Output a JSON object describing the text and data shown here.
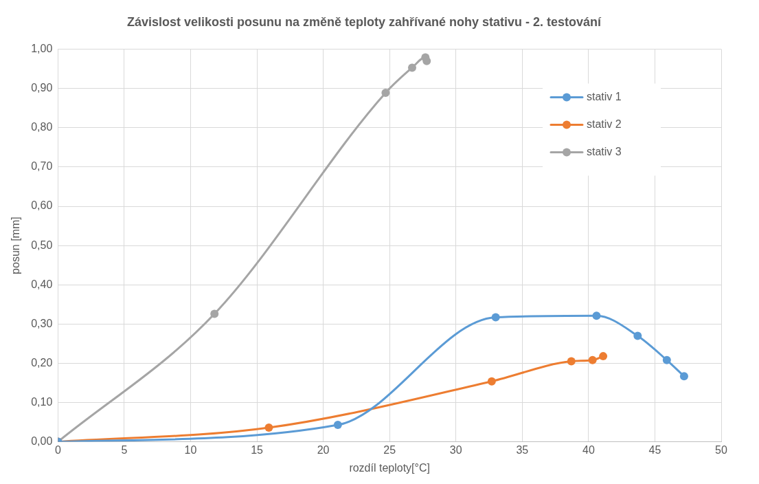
{
  "chart_data": {
    "type": "line",
    "title": "Závislost velikosti posunu na změně teploty zahřívané nohy stativu - 2. testování",
    "xlabel": "rozdíl teploty[°C]",
    "ylabel": "posun [mm]",
    "series": [
      {
        "name": "stativ 1",
        "color": "#5b9bd5",
        "x": [
          0,
          21.1,
          33.0,
          40.6,
          43.7,
          45.9,
          47.2
        ],
        "values": [
          0,
          0.043,
          0.317,
          0.321,
          0.27,
          0.208,
          0.167
        ]
      },
      {
        "name": "stativ 2",
        "color": "#ed7d31",
        "x": [
          0,
          15.9,
          32.7,
          38.7,
          40.3,
          41.1
        ],
        "values": [
          0,
          0.036,
          0.154,
          0.205,
          0.208,
          0.218
        ]
      },
      {
        "name": "stativ 3",
        "color": "#a5a5a5",
        "x": [
          0,
          11.8,
          24.7,
          26.7,
          27.6,
          27.7,
          27.8
        ],
        "values": [
          0,
          0.326,
          0.889,
          0.953,
          null,
          0.979,
          0.97
        ]
      }
    ],
    "xlim": [
      0,
      50
    ],
    "xticks": [
      0,
      5,
      10,
      15,
      20,
      25,
      30,
      35,
      40,
      45,
      50
    ],
    "ylim": [
      0,
      1
    ],
    "yticks": [
      {
        "value": 0,
        "label": "0,00"
      },
      {
        "value": 0.1,
        "label": "0,10"
      },
      {
        "value": 0.2,
        "label": "0,20"
      },
      {
        "value": 0.3,
        "label": "0,30"
      },
      {
        "value": 0.4,
        "label": "0,40"
      },
      {
        "value": 0.5,
        "label": "0,50"
      },
      {
        "value": 0.6,
        "label": "0,60"
      },
      {
        "value": 0.7,
        "label": "0,70"
      },
      {
        "value": 0.8,
        "label": "0,80"
      },
      {
        "value": 0.9,
        "label": "0,90"
      },
      {
        "value": 1,
        "label": "1,00"
      }
    ],
    "grid": true,
    "legend": "top right",
    "marker": "circle",
    "line_style": "solid"
  }
}
